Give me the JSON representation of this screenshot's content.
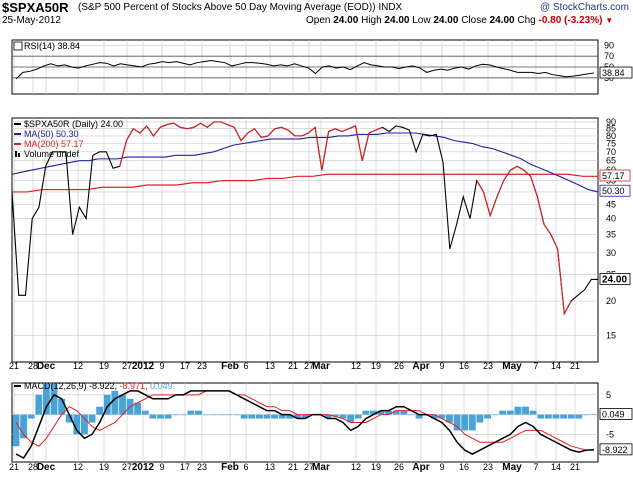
{
  "header": {
    "ticker": "$SPXA50R",
    "name": "(S&P 500 Percent of Stocks Above 50 Day Moving Average (EOD)) INDX",
    "date": "25-May-2012",
    "open_label": "Open",
    "open": "24.00",
    "high_label": "High",
    "high": "24.00",
    "low_label": "Low",
    "low": "24.00",
    "close_label": "Close",
    "close": "24.00",
    "chg_label": "Chg",
    "chg": "-0.80 (-3.23%)",
    "source": "@ StockCharts.com"
  },
  "colors": {
    "price": "#000000",
    "ma50": "#2020a0",
    "ma200": "#e02020",
    "rsi": "#000000",
    "macd": "#000000",
    "signal": "#e02020",
    "hist": "#4aa3d8",
    "grid": "#c8c8c8"
  },
  "chart_data": [
    {
      "type": "line",
      "panel": "rsi",
      "title": "RSI(14) 38.84",
      "ylim": [
        0,
        100
      ],
      "yticks": [
        30,
        50,
        70,
        90
      ],
      "reference_lines": [
        30,
        50,
        70
      ],
      "last_value": 38.84,
      "series": [
        {
          "name": "RSI(14)",
          "values": [
            28,
            40,
            42,
            46,
            52,
            56,
            52,
            54,
            50,
            48,
            52,
            55,
            58,
            57,
            52,
            56,
            54,
            52,
            50,
            55,
            57,
            60,
            58,
            60,
            57,
            54,
            58,
            60,
            62,
            60,
            58,
            52,
            55,
            58,
            58,
            57,
            55,
            52,
            54,
            52,
            56,
            52,
            48,
            38,
            50,
            52,
            48,
            50,
            45,
            52,
            58,
            54,
            52,
            50,
            50,
            47,
            50,
            52,
            48,
            40,
            44,
            46,
            44,
            48,
            50,
            46,
            52,
            55,
            54,
            50,
            47,
            44,
            40,
            40,
            40,
            38,
            40,
            36,
            34,
            32,
            33,
            35,
            37,
            39
          ]
        }
      ]
    },
    {
      "type": "line",
      "panel": "price",
      "title": "$SPXA50R (Daily) 24.00",
      "ylim": [
        12,
        93
      ],
      "yscale": "log",
      "yticks": [
        15,
        20,
        25,
        30,
        35,
        40,
        45,
        50,
        55,
        60,
        65,
        70,
        75,
        80,
        85,
        90
      ],
      "xticks": [
        "21",
        "28",
        "Dec",
        "12",
        "19",
        "27",
        "2012",
        "9",
        "17",
        "23",
        "Feb",
        "6",
        "13",
        "21",
        "27",
        "Mar",
        "12",
        "19",
        "26",
        "Apr",
        "9",
        "16",
        "23",
        "May",
        "7",
        "14",
        "21"
      ],
      "last_values": {
        "price": "24.00",
        "ma50": "50.30",
        "ma200": "57.17"
      },
      "legend": [
        "$SPXA50R (Daily) 24.00",
        "MA(50) 50.30",
        "MA(200) 57.17",
        "Volume undef"
      ],
      "series": [
        {
          "name": "$SPXA50R (Daily)",
          "values": [
            50,
            21,
            21,
            40,
            44,
            62,
            70,
            70,
            70,
            35,
            44,
            40,
            68,
            70,
            70,
            61,
            62,
            77,
            85,
            82,
            87,
            80,
            86,
            88,
            89,
            86,
            85,
            86,
            89,
            86,
            90,
            90,
            88,
            86,
            77,
            82,
            85,
            79,
            80,
            85,
            86,
            84,
            80,
            80,
            82,
            86,
            60,
            83,
            85,
            83,
            85,
            87,
            65,
            82,
            84,
            86,
            83,
            87,
            86,
            84,
            70,
            81,
            80,
            81,
            64,
            31,
            38,
            48,
            40,
            55,
            50,
            41,
            48,
            55,
            60,
            62,
            60,
            57,
            48,
            38,
            35,
            31,
            18,
            20,
            21,
            22,
            24,
            24
          ]
        },
        {
          "name": "MA(50)",
          "values": [
            58,
            59,
            60,
            61,
            62,
            63,
            64,
            65,
            65,
            66,
            66,
            66,
            67,
            67,
            67,
            67,
            67,
            68,
            68,
            68,
            69,
            70,
            72,
            74,
            75,
            76,
            77,
            78,
            78,
            78,
            78,
            79,
            79,
            79,
            80,
            80,
            81,
            81,
            81,
            82,
            82,
            82,
            82,
            81,
            80,
            79,
            77,
            76,
            75,
            73,
            72,
            70,
            68,
            66,
            63,
            61,
            59,
            57,
            55,
            53,
            51,
            50
          ]
        },
        {
          "name": "MA(200)",
          "values": [
            50,
            50,
            51,
            51,
            51,
            51,
            52,
            52,
            52,
            53,
            53,
            53,
            54,
            54,
            55,
            55,
            55,
            56,
            56,
            57,
            57,
            58,
            58,
            58,
            58,
            58,
            58,
            58,
            58,
            58,
            58,
            58,
            58,
            58,
            58,
            58,
            58,
            58,
            57,
            57
          ]
        }
      ]
    },
    {
      "type": "bar",
      "panel": "macd",
      "title": "MACD(12,26,9) -8.922, -8.971, 0.049",
      "legend": [
        {
          "label": "MACD(12,26,9)",
          "value": "-8.922"
        },
        {
          "label": "",
          "value": "-8.971"
        },
        {
          "label": "",
          "value": "0.049"
        }
      ],
      "ylim": [
        -12,
        8
      ],
      "yticks": [
        5,
        0,
        -5
      ],
      "last_values": {
        "macd": "-8.922",
        "signal": "-8.971",
        "hist": "0.049"
      },
      "series": [
        {
          "name": "MACD",
          "values": [
            -10,
            -11,
            -8,
            -3,
            2,
            5,
            4,
            0,
            -4,
            -6,
            -5,
            -2,
            2,
            4,
            5,
            6,
            6,
            5,
            4,
            4,
            4,
            5,
            5,
            6,
            6,
            6,
            6,
            6,
            6,
            5,
            4,
            3,
            2,
            1,
            1,
            0,
            0,
            -1,
            -1,
            0,
            0,
            -1,
            -1,
            -2,
            -4,
            -3,
            -1,
            0,
            1,
            1,
            2,
            2,
            1,
            0,
            0,
            -1,
            -2,
            -4,
            -7,
            -9,
            -10,
            -9,
            -8,
            -7,
            -6,
            -5,
            -3,
            -2,
            -3,
            -5,
            -6,
            -7,
            -8,
            -9,
            -9.5,
            -9,
            -8.9
          ]
        },
        {
          "name": "Signal",
          "values": [
            -2,
            -5,
            -7,
            -8,
            -6,
            -3,
            0,
            2,
            1,
            -1,
            -3,
            -4,
            -3,
            -2,
            0,
            2,
            3,
            4,
            5,
            5,
            5,
            5,
            5,
            5,
            5,
            6,
            6,
            6,
            6,
            5,
            5,
            4,
            3,
            2,
            2,
            1,
            1,
            0,
            0,
            0,
            0,
            0,
            -0.5,
            -1,
            -2,
            -2,
            -2,
            -1,
            0,
            0,
            1,
            1,
            1,
            1,
            0,
            0,
            -1,
            -2,
            -3,
            -5,
            -6,
            -7,
            -7,
            -7,
            -7,
            -6,
            -5,
            -4,
            -4,
            -4,
            -5,
            -6,
            -7,
            -8,
            -8.5,
            -9,
            -9
          ]
        }
      ]
    }
  ]
}
